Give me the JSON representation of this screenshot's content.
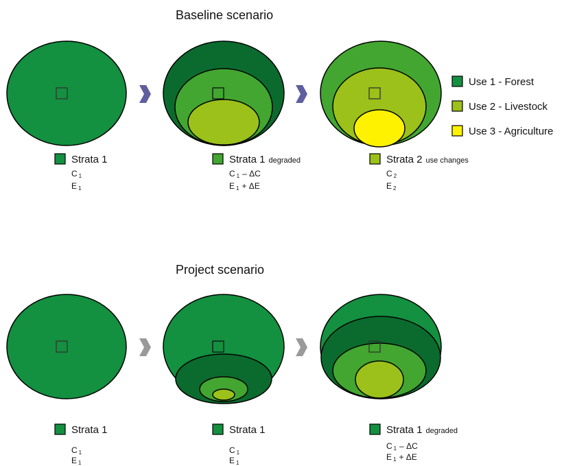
{
  "colors": {
    "forest": "#139040",
    "forest_dark": "#0b6b2e",
    "degraded": "#42a630",
    "livestock": "#9bc11a",
    "agriculture": "#fff200",
    "arrow_baseline": "#5f5f9f",
    "arrow_project": "#9a9a9a"
  },
  "baseline": {
    "title": "Baseline scenario",
    "legend": [
      {
        "label": "Use 1 - Forest",
        "color": "#139040"
      },
      {
        "label": "Use 2 - Livestock",
        "color": "#9bc11a"
      },
      {
        "label": "Use 3 - Agriculture",
        "color": "#fff200"
      }
    ],
    "captions": [
      {
        "name": "Strata 1",
        "suffix": "",
        "line1": "C",
        "line1_sub": "1",
        "line1_tail": "",
        "line2": "E",
        "line2_sub": "1",
        "line2_tail": "",
        "color": "#139040"
      },
      {
        "name": "Strata 1",
        "suffix": "degraded",
        "line1": "C",
        "line1_sub": "1",
        "line1_tail": "– ΔC",
        "line2": "E",
        "line2_sub": "1",
        "line2_tail": "+ ΔE",
        "color": "#42a630"
      },
      {
        "name": "Strata 2",
        "suffix": "use changes",
        "line1": "C",
        "line1_sub": "2",
        "line1_tail": "",
        "line2": "E",
        "line2_sub": "2",
        "line2_tail": "",
        "color": "#9bc11a"
      }
    ]
  },
  "project": {
    "title": "Project scenario",
    "captions": [
      {
        "name": "Strata 1",
        "suffix": "",
        "line1": "C",
        "line1_sub": "1",
        "line1_tail": "",
        "line2": "E",
        "line2_sub": "1",
        "line2_tail": "",
        "color": "#139040"
      },
      {
        "name": "Strata 1",
        "suffix": "",
        "line1": "C",
        "line1_sub": "1",
        "line1_tail": "",
        "line2": "E",
        "line2_sub": "1",
        "line2_tail": "",
        "color": "#139040"
      },
      {
        "name": "Strata 1",
        "suffix": "degraded",
        "line1": "C",
        "line1_sub": "1",
        "line1_tail": "– ΔC",
        "line2": "E",
        "line2_sub": "1",
        "line2_tail": "+ ΔE",
        "color": "#139040"
      }
    ]
  }
}
